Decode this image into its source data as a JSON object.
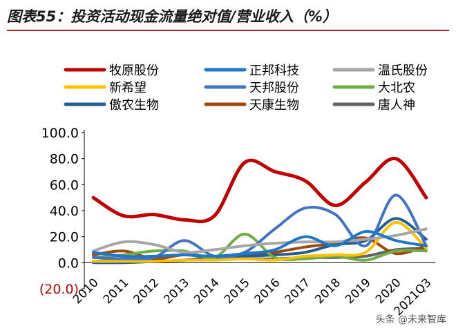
{
  "title": "图表55：投资活动现金流量绝对值/营业收入（%）",
  "watermark": "头条 @未来智库",
  "chart_data": {
    "type": "line",
    "categories": [
      "2010",
      "2011",
      "2012",
      "2013",
      "2014",
      "2015",
      "2016",
      "2017",
      "2018",
      "2019",
      "2020",
      "2021Q3"
    ],
    "ylim": [
      -20,
      100
    ],
    "yticks": [
      -20,
      0,
      20,
      40,
      60,
      80,
      100
    ],
    "ytick_labels": [
      "(20.0)",
      "0.0",
      "20.0",
      "40.0",
      "60.0",
      "80.0",
      "100.0"
    ],
    "legend_position": "top",
    "grid": false,
    "series": [
      {
        "name": "牧原股份",
        "color": "#c00000",
        "values": [
          50,
          36,
          37,
          33,
          36,
          77,
          70,
          63,
          44,
          62,
          80,
          50
        ]
      },
      {
        "name": "正邦科技",
        "color": "#1f77c8",
        "values": [
          8,
          5,
          5,
          6,
          5,
          7,
          10,
          20,
          13,
          24,
          17,
          13
        ]
      },
      {
        "name": "温氏股份",
        "color": "#a6a6a6",
        "values": [
          9,
          16,
          14,
          8,
          10,
          13,
          15,
          16,
          16,
          18,
          21,
          26
        ]
      },
      {
        "name": "新希望",
        "color": "#ffc000",
        "values": [
          1,
          1,
          1,
          2,
          2,
          3,
          2,
          5,
          6,
          8,
          31,
          11
        ]
      },
      {
        "name": "天邦股份",
        "color": "#4472c4",
        "values": [
          4,
          3,
          4,
          17,
          5,
          8,
          26,
          42,
          37,
          13,
          52,
          13
        ]
      },
      {
        "name": "大北农",
        "color": "#70ad47",
        "values": [
          4,
          6,
          9,
          9,
          4,
          22,
          4,
          3,
          5,
          2,
          9,
          9
        ]
      },
      {
        "name": "傲农生物",
        "color": "#255e91",
        "values": [
          0,
          0,
          1,
          2,
          4,
          5,
          6,
          8,
          14,
          17,
          34,
          18
        ]
      },
      {
        "name": "天康生物",
        "color": "#9e480e",
        "values": [
          6,
          9,
          3,
          6,
          4,
          5,
          8,
          12,
          15,
          19,
          7,
          13
        ]
      },
      {
        "name": "唐人神",
        "color": "#636363",
        "values": [
          1,
          2,
          1,
          2,
          3,
          3,
          3,
          4,
          4,
          5,
          10,
          11
        ]
      }
    ]
  }
}
